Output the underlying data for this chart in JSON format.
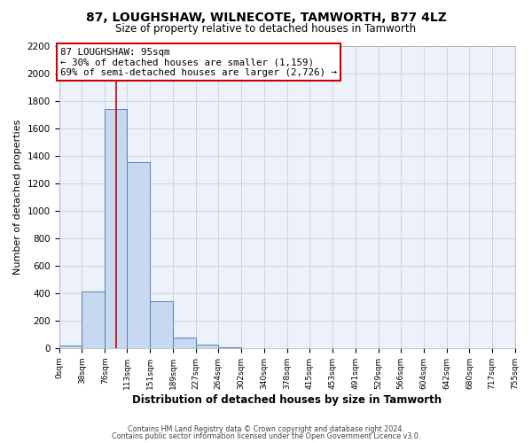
{
  "title": "87, LOUGHSHAW, WILNECOTE, TAMWORTH, B77 4LZ",
  "subtitle": "Size of property relative to detached houses in Tamworth",
  "xlabel": "Distribution of detached houses by size in Tamworth",
  "ylabel": "Number of detached properties",
  "bin_edges": [
    0,
    38,
    76,
    113,
    151,
    189,
    227,
    264,
    302,
    340,
    378,
    415,
    453,
    491,
    529,
    566,
    604,
    642,
    680,
    717,
    755
  ],
  "bin_heights": [
    20,
    410,
    1740,
    1350,
    340,
    75,
    25,
    5,
    0,
    0,
    0,
    0,
    0,
    0,
    0,
    0,
    0,
    0,
    0,
    0
  ],
  "bar_facecolor": "#c6d9f0",
  "bar_edgecolor": "#5580b0",
  "vline_x": 95,
  "vline_color": "#cc0000",
  "annotation_line1": "87 LOUGHSHAW: 95sqm",
  "annotation_line2": "← 30% of detached houses are smaller (1,159)",
  "annotation_line3": "69% of semi-detached houses are larger (2,726) →",
  "annotation_box_edgecolor": "#cc0000",
  "annotation_box_facecolor": "#ffffff",
  "ylim": [
    0,
    2200
  ],
  "yticks": [
    0,
    200,
    400,
    600,
    800,
    1000,
    1200,
    1400,
    1600,
    1800,
    2000,
    2200
  ],
  "xtick_labels": [
    "0sqm",
    "38sqm",
    "76sqm",
    "113sqm",
    "151sqm",
    "189sqm",
    "227sqm",
    "264sqm",
    "302sqm",
    "340sqm",
    "378sqm",
    "415sqm",
    "453sqm",
    "491sqm",
    "529sqm",
    "566sqm",
    "604sqm",
    "642sqm",
    "680sqm",
    "717sqm",
    "755sqm"
  ],
  "footnote1": "Contains HM Land Registry data © Crown copyright and database right 2024.",
  "footnote2": "Contains public sector information licensed under the Open Government Licence v3.0.",
  "grid_color": "#c8d4e8",
  "background_color": "#edf1f9"
}
